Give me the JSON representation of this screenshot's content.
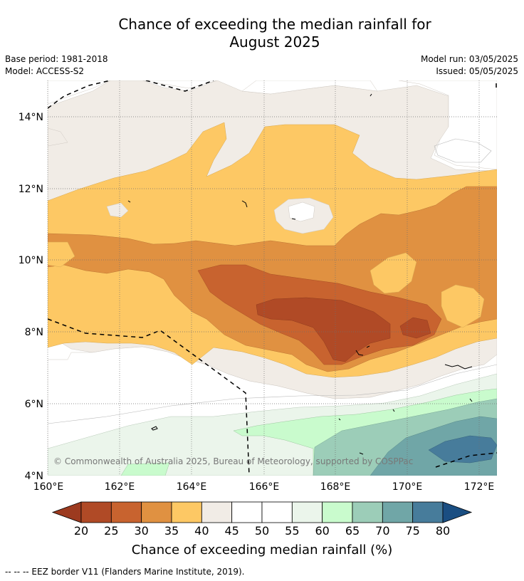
{
  "title": {
    "line1": "Chance of exceeding the median rainfall for",
    "line2": "August 2025"
  },
  "meta_left": {
    "base_period": "Base period: 1981-2018",
    "model": "Model: ACCESS-S2"
  },
  "meta_right": {
    "model_run": "Model run: 03/05/2025",
    "issued": "Issued: 05/05/2025"
  },
  "map": {
    "lon_ticks": [
      "160°E",
      "162°E",
      "164°E",
      "166°E",
      "168°E",
      "170°E",
      "172°E"
    ],
    "lat_ticks": [
      "14°N",
      "12°N",
      "10°N",
      "8°N",
      "6°N",
      "4°N"
    ],
    "copyright": "© Commonwealth of Australia 2025, Bureau of Meteorology, supported by COSPPac"
  },
  "colorbar": {
    "ticks": [
      "20",
      "25",
      "30",
      "35",
      "40",
      "45",
      "50",
      "55",
      "60",
      "65",
      "70",
      "75",
      "80"
    ],
    "label": "Chance of exceeding median rainfall (%)",
    "colors": {
      "below_20": "#9c3a1f",
      "c20_25": "#b04a26",
      "c25_30": "#c8632f",
      "c30_35": "#e09141",
      "c35_40": "#fdc864",
      "c40_45": "#f1ece6",
      "c45_50": "#ffffff",
      "c50_55": "#ffffff",
      "c55_60": "#ebf5eb",
      "c60_65": "#c9fbcd",
      "c65_70": "#9ccdb8",
      "c70_75": "#70a6a7",
      "c75_80": "#477c9b",
      "above_80": "#1a4e82"
    }
  },
  "footer": {
    "legend_line": "--  --  -- EEZ border V11 (Flanders Marine Institute, 2019)."
  }
}
